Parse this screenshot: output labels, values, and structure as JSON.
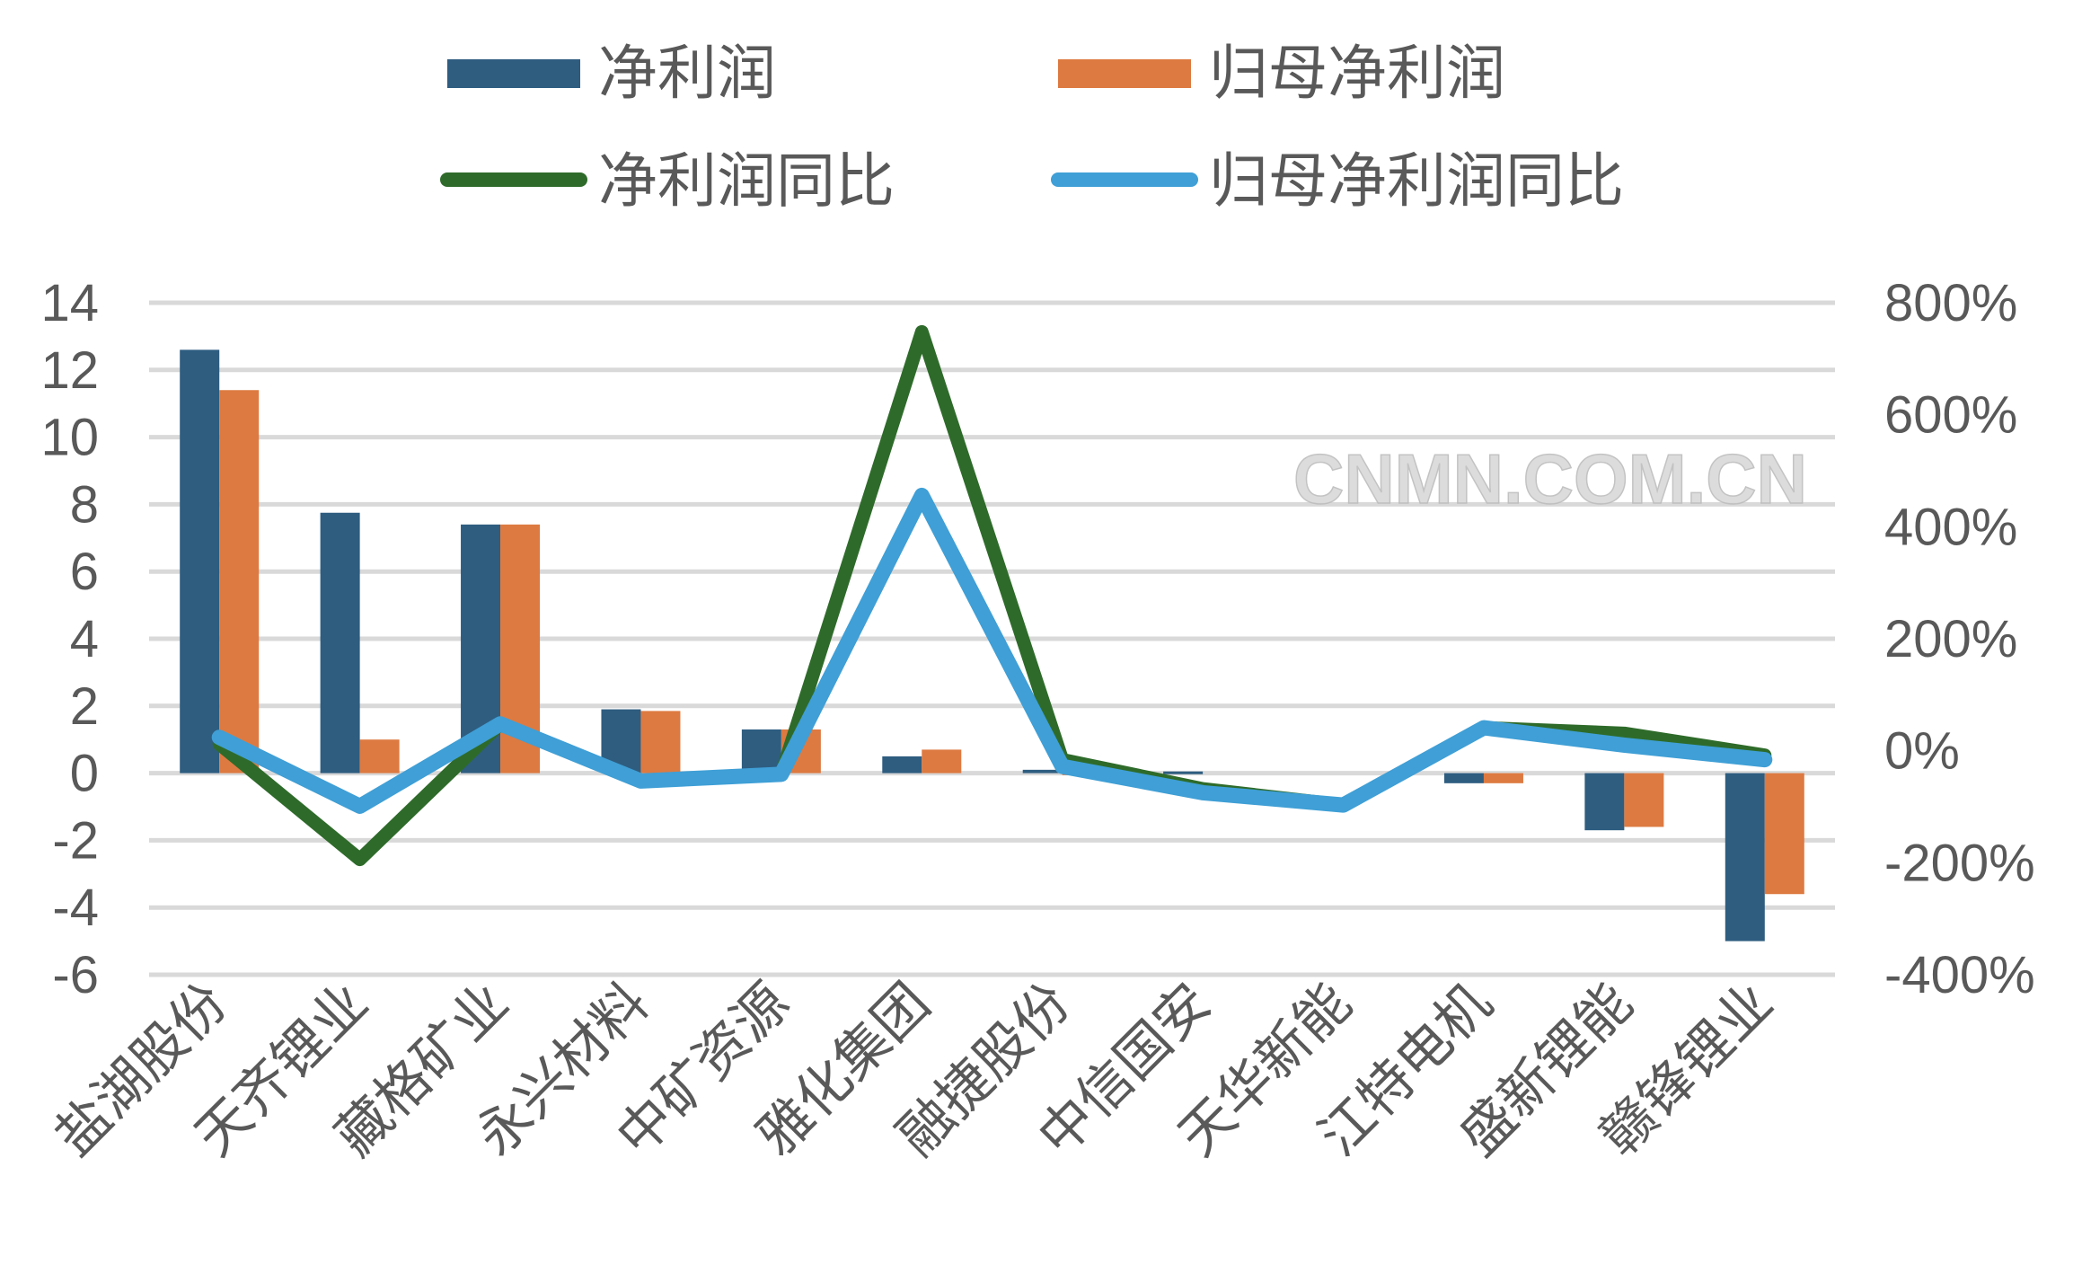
{
  "chart_data": {
    "type": "bar+line",
    "categories": [
      "盐湖股份",
      "天齐锂业",
      "藏格矿业",
      "永兴材料",
      "中矿资源",
      "雅化集团",
      "融捷股份",
      "中信国安",
      "天华新能",
      "江特电机",
      "盛新锂能",
      "赣锋锂业"
    ],
    "bar_series": [
      {
        "name": "净利润",
        "color": "#2e5d80",
        "axis": "left",
        "values": [
          12.6,
          7.75,
          7.4,
          1.9,
          1.3,
          0.5,
          0.1,
          0.05,
          0,
          -0.3,
          -1.7,
          -5.0
        ]
      },
      {
        "name": "归母净利润",
        "color": "#dd7a41",
        "axis": "left",
        "values": [
          11.4,
          1.0,
          7.4,
          1.85,
          1.3,
          0.7,
          0.02,
          0,
          0,
          -0.3,
          -1.6,
          -3.6
        ]
      }
    ],
    "line_series": [
      {
        "name": "净利润同比",
        "color": "#2e6b2a",
        "axis": "right",
        "values": [
          12,
          -194,
          48,
          -54,
          -42,
          748,
          -16,
          -68,
          -97,
          41,
          31,
          -8
        ]
      },
      {
        "name": "归母净利润同比",
        "color": "#3f9fd6",
        "axis": "right",
        "values": [
          24,
          -99,
          48,
          -54,
          -42,
          456,
          -28,
          -75,
          -97,
          41,
          10,
          -16
        ]
      }
    ],
    "left_axis": {
      "range": [
        -6,
        14
      ],
      "ticks": [
        "14",
        "12",
        "10",
        "8",
        "6",
        "4",
        "2",
        "0",
        "-2",
        "-4",
        "-6"
      ],
      "tick_values": [
        14,
        12,
        10,
        8,
        6,
        4,
        2,
        0,
        -2,
        -4,
        -6
      ]
    },
    "right_axis": {
      "range": [
        -400,
        800
      ],
      "ticks": [
        "800%",
        "600%",
        "400%",
        "200%",
        "0%",
        "-200%",
        "-400%"
      ],
      "tick_values": [
        800,
        600,
        400,
        200,
        0,
        -200,
        -400
      ]
    },
    "grid": true,
    "legend_position": "top",
    "watermark": "CNMN.COM.CN"
  }
}
